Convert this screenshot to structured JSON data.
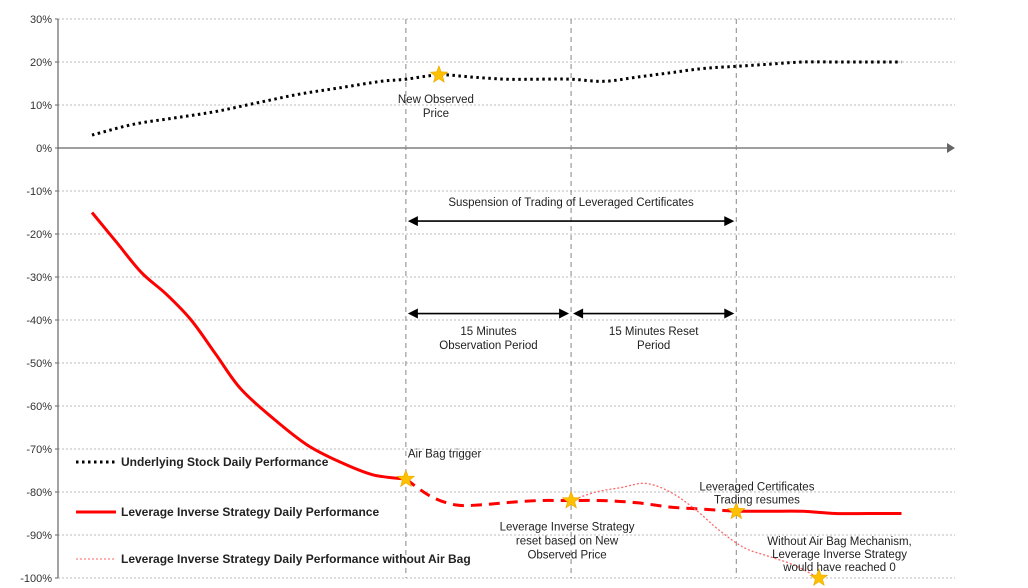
{
  "chart_data": {
    "type": "line",
    "title": "",
    "xlabel": "",
    "ylabel": "",
    "ylim": [
      -100,
      30
    ],
    "y_ticks": [
      "30%",
      "20%",
      "10%",
      "0%",
      "-10%",
      "-20%",
      "-30%",
      "-40%",
      "-50%",
      "-60%",
      "-70%",
      "-80%",
      "-90%",
      "-100%"
    ],
    "grid": "horizontal dotted",
    "x_range": [
      0,
      100
    ],
    "event_lines_x": [
      38,
      58,
      78
    ],
    "series": [
      {
        "name": "Underlying Stock Daily Performance",
        "style": "dotted",
        "color": "#000000",
        "x": [
          0,
          5,
          10,
          15,
          20,
          25,
          30,
          35,
          38,
          42,
          46,
          50,
          54,
          58,
          62,
          66,
          70,
          74,
          78,
          82,
          86,
          90,
          94,
          98
        ],
        "y": [
          3,
          5.5,
          7,
          8.5,
          10.5,
          12.5,
          14,
          15.5,
          16,
          17,
          16.5,
          16,
          16,
          16,
          15.5,
          16.5,
          17.5,
          18.5,
          19,
          19.5,
          20,
          20,
          20,
          20
        ]
      },
      {
        "name": "Leverage Inverse Strategy Daily Performance",
        "style": "solid",
        "color": "#ff0000",
        "x": [
          0,
          3,
          6,
          9,
          12,
          15,
          18,
          22,
          26,
          30,
          34,
          38
        ],
        "y": [
          -15,
          -22,
          -29,
          -34,
          -40,
          -48,
          -56,
          -63,
          -69,
          -73,
          -76,
          -77
        ],
        "dashed_x": [
          38,
          41,
          44,
          47,
          50,
          54,
          58,
          62,
          66,
          70,
          74,
          78
        ],
        "dashed_y": [
          -77,
          -81,
          -83,
          -83,
          -82.5,
          -82,
          -82,
          -82,
          -82.5,
          -83.5,
          -84,
          -84.5
        ],
        "resumed_x": [
          78,
          82,
          86,
          90,
          94,
          98
        ],
        "resumed_y": [
          -84.5,
          -84.5,
          -84.5,
          -85,
          -85,
          -85
        ]
      },
      {
        "name": "Leverage Inverse Strategy Daily Performance without Air Bag",
        "style": "thin dotted",
        "color": "#ff6666",
        "x": [
          58,
          61,
          64,
          67,
          70,
          73,
          76,
          79,
          82,
          85,
          88
        ],
        "y": [
          -82,
          -80,
          -79,
          -78,
          -80,
          -84,
          -89,
          -93,
          -95,
          -97,
          -100
        ]
      }
    ],
    "markers": [
      {
        "label": "New Observed Price",
        "x": 42,
        "y": 17,
        "color": "#ffc000",
        "shape": "star"
      },
      {
        "label": "Air Bag trigger",
        "x": 38,
        "y": -77,
        "color": "#ffc000",
        "shape": "star"
      },
      {
        "label": "Leverage Inverse Strategy reset based on New Observed Price",
        "x": 58,
        "y": -82,
        "color": "#ffc000",
        "shape": "star"
      },
      {
        "label": "Leveraged Certificates Trading resumes",
        "x": 78,
        "y": -84.5,
        "color": "#ffc000",
        "shape": "star"
      },
      {
        "label": "Without Air Bag Mechanism, Leverage Inverse Strategy would have reached 0",
        "x": 88,
        "y": -100,
        "color": "#ffc000",
        "shape": "star"
      }
    ],
    "annotations": {
      "new_observed_price": [
        "New Observed",
        "Price"
      ],
      "suspension": "Suspension of  Trading of Leveraged Certificates",
      "observation_period": [
        "15 Minutes",
        "Observation Period"
      ],
      "reset_period": [
        "15 Minutes Reset",
        "Period"
      ],
      "air_bag_trigger": "Air Bag trigger",
      "reset_note": [
        "Leverage Inverse Strategy",
        "reset based on New",
        "Observed Price"
      ],
      "trading_resumes": [
        "Leveraged Certificates",
        "Trading resumes"
      ],
      "without_air_bag": [
        "Without Air Bag Mechanism,",
        "Leverage Inverse Strategy",
        "would have reached 0"
      ]
    },
    "legend": {
      "placement": "bottom-left inside plot",
      "entries": [
        {
          "label": "Underlying Stock Daily Performance",
          "style": "dotted",
          "color": "#000000"
        },
        {
          "label": "Leverage Inverse Strategy Daily Performance",
          "style": "solid",
          "color": "#ff0000"
        },
        {
          "label": "Leverage Inverse Strategy Daily Performance without Air Bag",
          "style": "thin dotted",
          "color": "#ff8080"
        }
      ]
    },
    "colors": {
      "underlying": "#000000",
      "strategy": "#ff0000",
      "without_air_bag": "#ff8080",
      "star": "#ffc000",
      "grid": "#bbbbbb",
      "event_line": "#888888"
    }
  }
}
